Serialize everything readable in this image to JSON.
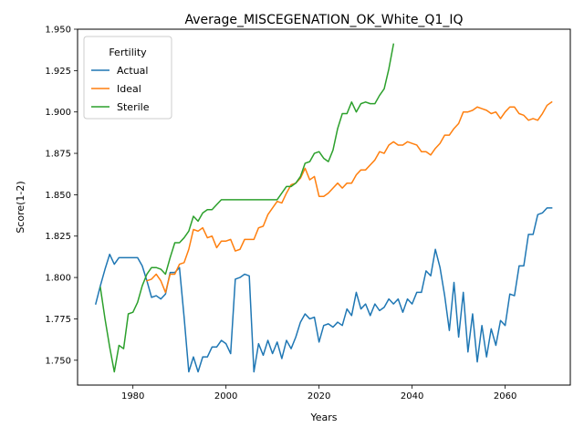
{
  "chart_data": {
    "type": "line",
    "title": "Average_MISCEGENATION_OK_White_Q1_IQ",
    "xlabel": "Years",
    "ylabel": "Score(1-2)",
    "xlim": [
      1968.1,
      2074.0
    ],
    "ylim": [
      1.735,
      1.95
    ],
    "x_ticks": [
      1980,
      2000,
      2020,
      2040,
      2060
    ],
    "y_ticks": [
      1.75,
      1.775,
      1.8,
      1.825,
      1.85,
      1.875,
      1.9,
      1.925,
      1.95
    ],
    "y_tick_labels": [
      "1.750",
      "1.775",
      "1.800",
      "1.825",
      "1.850",
      "1.875",
      "1.900",
      "1.925",
      "1.950"
    ],
    "grid": false,
    "legend": {
      "title": "Fertility",
      "position": "top-left"
    },
    "series": [
      {
        "name": "Actual",
        "color": "#1f77b4",
        "points": [
          [
            1972,
            1.784
          ],
          [
            1973,
            1.795
          ],
          [
            1974,
            1.805
          ],
          [
            1975,
            1.814
          ],
          [
            1976,
            1.808
          ],
          [
            1977,
            1.812
          ],
          [
            1978,
            1.812
          ],
          [
            1979,
            1.812
          ],
          [
            1980,
            1.812
          ],
          [
            1981,
            1.812
          ],
          [
            1982,
            1.807
          ],
          [
            1983,
            1.798
          ],
          [
            1984,
            1.788
          ],
          [
            1985,
            1.789
          ],
          [
            1986,
            1.787
          ],
          [
            1987,
            1.79
          ],
          [
            1988,
            1.803
          ],
          [
            1989,
            1.803
          ],
          [
            1990,
            1.806
          ],
          [
            1991,
            1.776
          ],
          [
            1992,
            1.743
          ],
          [
            1993,
            1.752
          ],
          [
            1994,
            1.743
          ],
          [
            1995,
            1.752
          ],
          [
            1996,
            1.752
          ],
          [
            1997,
            1.758
          ],
          [
            1998,
            1.758
          ],
          [
            1999,
            1.762
          ],
          [
            2000,
            1.76
          ],
          [
            2001,
            1.754
          ],
          [
            2002,
            1.799
          ],
          [
            2003,
            1.8
          ],
          [
            2004,
            1.802
          ],
          [
            2005,
            1.801
          ],
          [
            2006,
            1.743
          ],
          [
            2007,
            1.76
          ],
          [
            2008,
            1.753
          ],
          [
            2009,
            1.762
          ],
          [
            2010,
            1.754
          ],
          [
            2011,
            1.761
          ],
          [
            2012,
            1.751
          ],
          [
            2013,
            1.762
          ],
          [
            2014,
            1.757
          ],
          [
            2015,
            1.764
          ],
          [
            2016,
            1.773
          ],
          [
            2017,
            1.778
          ],
          [
            2018,
            1.775
          ],
          [
            2019,
            1.776
          ],
          [
            2020,
            1.761
          ],
          [
            2021,
            1.771
          ],
          [
            2022,
            1.772
          ],
          [
            2023,
            1.77
          ],
          [
            2024,
            1.773
          ],
          [
            2025,
            1.771
          ],
          [
            2026,
            1.781
          ],
          [
            2027,
            1.777
          ],
          [
            2028,
            1.791
          ],
          [
            2029,
            1.781
          ],
          [
            2030,
            1.784
          ],
          [
            2031,
            1.777
          ],
          [
            2032,
            1.784
          ],
          [
            2033,
            1.78
          ],
          [
            2034,
            1.782
          ],
          [
            2035,
            1.787
          ],
          [
            2036,
            1.784
          ],
          [
            2037,
            1.787
          ],
          [
            2038,
            1.779
          ],
          [
            2039,
            1.787
          ],
          [
            2040,
            1.784
          ],
          [
            2041,
            1.791
          ],
          [
            2042,
            1.791
          ],
          [
            2043,
            1.804
          ],
          [
            2044,
            1.801
          ],
          [
            2045,
            1.817
          ],
          [
            2046,
            1.806
          ],
          [
            2047,
            1.789
          ],
          [
            2048,
            1.768
          ],
          [
            2049,
            1.797
          ],
          [
            2050,
            1.764
          ],
          [
            2051,
            1.791
          ],
          [
            2052,
            1.755
          ],
          [
            2053,
            1.778
          ],
          [
            2054,
            1.749
          ],
          [
            2055,
            1.771
          ],
          [
            2056,
            1.752
          ],
          [
            2057,
            1.769
          ],
          [
            2058,
            1.759
          ],
          [
            2059,
            1.774
          ],
          [
            2060,
            1.771
          ],
          [
            2061,
            1.79
          ],
          [
            2062,
            1.789
          ],
          [
            2063,
            1.807
          ],
          [
            2064,
            1.807
          ],
          [
            2065,
            1.826
          ],
          [
            2066,
            1.826
          ],
          [
            2067,
            1.838
          ],
          [
            2068,
            1.839
          ],
          [
            2069,
            1.842
          ],
          [
            2070,
            1.842
          ]
        ]
      },
      {
        "name": "Ideal",
        "color": "#ff7f0e",
        "points": [
          [
            1983,
            1.798
          ],
          [
            1984,
            1.799
          ],
          [
            1985,
            1.802
          ],
          [
            1986,
            1.798
          ],
          [
            1987,
            1.791
          ],
          [
            1988,
            1.802
          ],
          [
            1989,
            1.802
          ],
          [
            1990,
            1.808
          ],
          [
            1991,
            1.809
          ],
          [
            1992,
            1.817
          ],
          [
            1993,
            1.829
          ],
          [
            1994,
            1.828
          ],
          [
            1995,
            1.83
          ],
          [
            1996,
            1.824
          ],
          [
            1997,
            1.825
          ],
          [
            1998,
            1.818
          ],
          [
            1999,
            1.822
          ],
          [
            2000,
            1.822
          ],
          [
            2001,
            1.823
          ],
          [
            2002,
            1.816
          ],
          [
            2003,
            1.817
          ],
          [
            2004,
            1.823
          ],
          [
            2005,
            1.823
          ],
          [
            2006,
            1.823
          ],
          [
            2007,
            1.83
          ],
          [
            2008,
            1.831
          ],
          [
            2009,
            1.838
          ],
          [
            2010,
            1.842
          ],
          [
            2011,
            1.846
          ],
          [
            2012,
            1.845
          ],
          [
            2013,
            1.851
          ],
          [
            2014,
            1.856
          ],
          [
            2015,
            1.857
          ],
          [
            2016,
            1.86
          ],
          [
            2017,
            1.866
          ],
          [
            2018,
            1.859
          ],
          [
            2019,
            1.861
          ],
          [
            2020,
            1.849
          ],
          [
            2021,
            1.849
          ],
          [
            2022,
            1.851
          ],
          [
            2023,
            1.854
          ],
          [
            2024,
            1.857
          ],
          [
            2025,
            1.854
          ],
          [
            2026,
            1.857
          ],
          [
            2027,
            1.857
          ],
          [
            2028,
            1.862
          ],
          [
            2029,
            1.865
          ],
          [
            2030,
            1.865
          ],
          [
            2031,
            1.868
          ],
          [
            2032,
            1.871
          ],
          [
            2033,
            1.876
          ],
          [
            2034,
            1.875
          ],
          [
            2035,
            1.88
          ],
          [
            2036,
            1.882
          ],
          [
            2037,
            1.88
          ],
          [
            2038,
            1.88
          ],
          [
            2039,
            1.882
          ],
          [
            2040,
            1.881
          ],
          [
            2041,
            1.88
          ],
          [
            2042,
            1.876
          ],
          [
            2043,
            1.876
          ],
          [
            2044,
            1.874
          ],
          [
            2045,
            1.878
          ],
          [
            2046,
            1.881
          ],
          [
            2047,
            1.886
          ],
          [
            2048,
            1.886
          ],
          [
            2049,
            1.89
          ],
          [
            2050,
            1.893
          ],
          [
            2051,
            1.9
          ],
          [
            2052,
            1.9
          ],
          [
            2053,
            1.901
          ],
          [
            2054,
            1.903
          ],
          [
            2055,
            1.902
          ],
          [
            2056,
            1.901
          ],
          [
            2057,
            1.899
          ],
          [
            2058,
            1.9
          ],
          [
            2059,
            1.896
          ],
          [
            2060,
            1.9
          ],
          [
            2061,
            1.903
          ],
          [
            2062,
            1.903
          ],
          [
            2063,
            1.899
          ],
          [
            2064,
            1.898
          ],
          [
            2065,
            1.895
          ],
          [
            2066,
            1.896
          ],
          [
            2067,
            1.895
          ],
          [
            2068,
            1.899
          ],
          [
            2069,
            1.904
          ],
          [
            2070,
            1.906
          ]
        ]
      },
      {
        "name": "Sterile",
        "color": "#2ca02c",
        "points": [
          [
            1973,
            1.794
          ],
          [
            1974,
            1.775
          ],
          [
            1975,
            1.758
          ],
          [
            1976,
            1.743
          ],
          [
            1977,
            1.759
          ],
          [
            1978,
            1.757
          ],
          [
            1979,
            1.778
          ],
          [
            1980,
            1.779
          ],
          [
            1981,
            1.785
          ],
          [
            1982,
            1.795
          ],
          [
            1983,
            1.802
          ],
          [
            1984,
            1.806
          ],
          [
            1985,
            1.806
          ],
          [
            1986,
            1.805
          ],
          [
            1987,
            1.802
          ],
          [
            1988,
            1.812
          ],
          [
            1989,
            1.821
          ],
          [
            1990,
            1.821
          ],
          [
            1991,
            1.824
          ],
          [
            1992,
            1.828
          ],
          [
            1993,
            1.837
          ],
          [
            1994,
            1.834
          ],
          [
            1995,
            1.839
          ],
          [
            1996,
            1.841
          ],
          [
            1997,
            1.841
          ],
          [
            1998,
            1.844
          ],
          [
            1999,
            1.847
          ],
          [
            2000,
            1.847
          ],
          [
            2001,
            1.847
          ],
          [
            2002,
            1.847
          ],
          [
            2003,
            1.847
          ],
          [
            2004,
            1.847
          ],
          [
            2005,
            1.847
          ],
          [
            2006,
            1.847
          ],
          [
            2007,
            1.847
          ],
          [
            2008,
            1.847
          ],
          [
            2009,
            1.847
          ],
          [
            2010,
            1.847
          ],
          [
            2011,
            1.847
          ],
          [
            2012,
            1.851
          ],
          [
            2013,
            1.855
          ],
          [
            2014,
            1.855
          ],
          [
            2015,
            1.857
          ],
          [
            2016,
            1.861
          ],
          [
            2017,
            1.869
          ],
          [
            2018,
            1.87
          ],
          [
            2019,
            1.875
          ],
          [
            2020,
            1.876
          ],
          [
            2021,
            1.872
          ],
          [
            2022,
            1.87
          ],
          [
            2023,
            1.877
          ],
          [
            2024,
            1.89
          ],
          [
            2025,
            1.899
          ],
          [
            2026,
            1.899
          ],
          [
            2027,
            1.906
          ],
          [
            2028,
            1.9
          ],
          [
            2029,
            1.905
          ],
          [
            2030,
            1.906
          ],
          [
            2031,
            1.905
          ],
          [
            2032,
            1.905
          ],
          [
            2033,
            1.91
          ],
          [
            2034,
            1.914
          ],
          [
            2035,
            1.926
          ],
          [
            2036,
            1.941
          ]
        ]
      }
    ]
  }
}
